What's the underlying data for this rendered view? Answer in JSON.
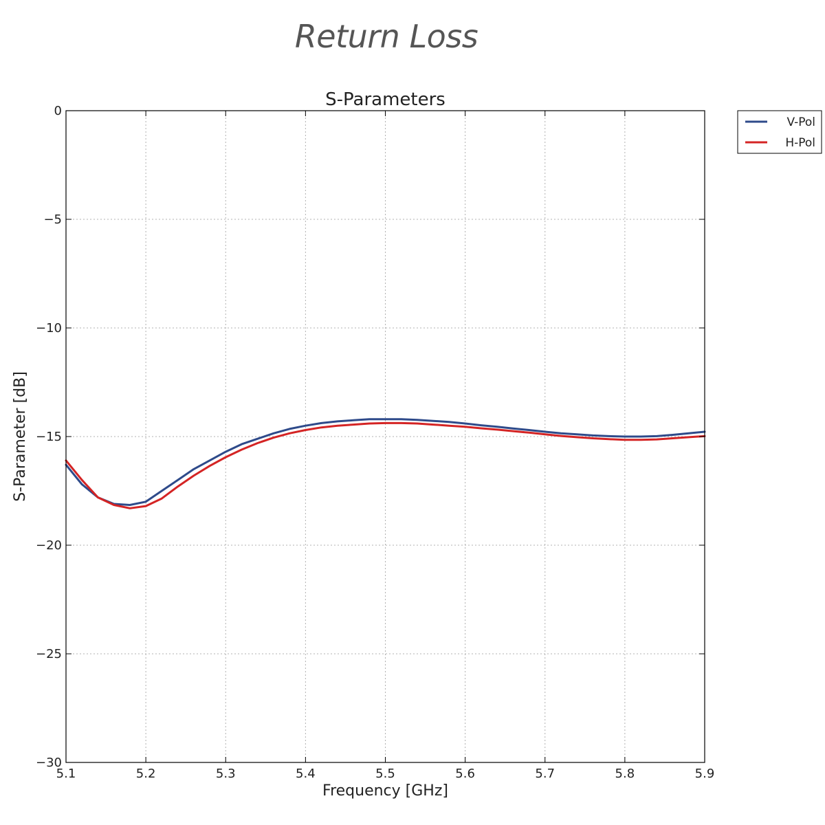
{
  "page": {
    "heading": "Return Loss"
  },
  "chart_data": {
    "type": "line",
    "title": "S-Parameters",
    "xlabel": "Frequency [GHz]",
    "ylabel": "S-Parameter [dB]",
    "xlim": [
      5.1,
      5.9
    ],
    "ylim": [
      -30,
      0
    ],
    "xticks": [
      5.1,
      5.2,
      5.3,
      5.4,
      5.5,
      5.6,
      5.7,
      5.8,
      5.9
    ],
    "yticks": [
      0,
      -5,
      -10,
      -15,
      -20,
      -25,
      -30
    ],
    "xtick_labels": [
      "5.1",
      "5.2",
      "5.3",
      "5.4",
      "5.5",
      "5.6",
      "5.7",
      "5.8",
      "5.9"
    ],
    "ytick_labels": [
      "0",
      "−5",
      "−10",
      "−15",
      "−20",
      "−25",
      "−30"
    ],
    "grid": true,
    "legend_position": "outside-top-right",
    "series": [
      {
        "name": "V-Pol",
        "color": "#2e4a8a",
        "x": [
          5.1,
          5.12,
          5.14,
          5.16,
          5.18,
          5.2,
          5.22,
          5.24,
          5.26,
          5.28,
          5.3,
          5.32,
          5.34,
          5.36,
          5.38,
          5.4,
          5.42,
          5.44,
          5.46,
          5.48,
          5.5,
          5.52,
          5.54,
          5.56,
          5.58,
          5.6,
          5.62,
          5.64,
          5.66,
          5.68,
          5.7,
          5.72,
          5.74,
          5.76,
          5.78,
          5.8,
          5.82,
          5.84,
          5.86,
          5.88,
          5.9
        ],
        "y": [
          -16.3,
          -17.2,
          -17.8,
          -18.1,
          -18.15,
          -18.0,
          -17.5,
          -17.0,
          -16.5,
          -16.1,
          -15.7,
          -15.35,
          -15.1,
          -14.85,
          -14.65,
          -14.5,
          -14.38,
          -14.3,
          -14.25,
          -14.2,
          -14.2,
          -14.2,
          -14.23,
          -14.28,
          -14.33,
          -14.4,
          -14.48,
          -14.55,
          -14.63,
          -14.7,
          -14.78,
          -14.85,
          -14.9,
          -14.95,
          -14.98,
          -15.0,
          -15.0,
          -14.98,
          -14.92,
          -14.85,
          -14.78
        ]
      },
      {
        "name": "H-Pol",
        "color": "#d42424",
        "x": [
          5.1,
          5.12,
          5.14,
          5.16,
          5.18,
          5.2,
          5.22,
          5.24,
          5.26,
          5.28,
          5.3,
          5.32,
          5.34,
          5.36,
          5.38,
          5.4,
          5.42,
          5.44,
          5.46,
          5.48,
          5.5,
          5.52,
          5.54,
          5.56,
          5.58,
          5.6,
          5.62,
          5.64,
          5.66,
          5.68,
          5.7,
          5.72,
          5.74,
          5.76,
          5.78,
          5.8,
          5.82,
          5.84,
          5.86,
          5.88,
          5.9
        ],
        "y": [
          -16.1,
          -17.0,
          -17.8,
          -18.15,
          -18.3,
          -18.2,
          -17.85,
          -17.3,
          -16.8,
          -16.35,
          -15.95,
          -15.6,
          -15.3,
          -15.05,
          -14.85,
          -14.7,
          -14.58,
          -14.5,
          -14.45,
          -14.4,
          -14.38,
          -14.38,
          -14.4,
          -14.45,
          -14.5,
          -14.55,
          -14.62,
          -14.68,
          -14.75,
          -14.82,
          -14.9,
          -14.97,
          -15.03,
          -15.08,
          -15.12,
          -15.15,
          -15.15,
          -15.13,
          -15.08,
          -15.03,
          -14.98
        ]
      }
    ]
  }
}
